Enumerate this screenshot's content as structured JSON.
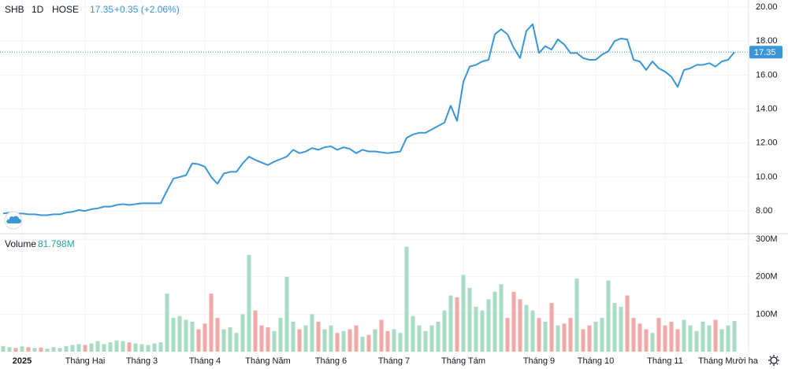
{
  "header": {
    "symbol": "SHB",
    "interval": "1D",
    "exchange": "HOSE",
    "last": "17.35",
    "change": "+0.35 (+2.06%)",
    "volume_value": "81.798M"
  },
  "chart_data": [
    {
      "type": "line",
      "categories": [
        null,
        null,
        null,
        "2025",
        null,
        null,
        null,
        null,
        null,
        null,
        null,
        null,
        null,
        "Tháng Hai",
        null,
        null,
        null,
        null,
        null,
        null,
        null,
        null,
        "Tháng 3",
        null,
        null,
        null,
        null,
        null,
        null,
        null,
        null,
        null,
        "Tháng 4",
        null,
        null,
        null,
        null,
        null,
        null,
        null,
        null,
        null,
        "Tháng Năm",
        null,
        null,
        null,
        null,
        null,
        null,
        null,
        null,
        null,
        "Tháng 6",
        null,
        null,
        null,
        null,
        null,
        null,
        null,
        null,
        null,
        "Tháng 7",
        null,
        null,
        null,
        null,
        null,
        null,
        null,
        null,
        null,
        null,
        "Tháng Tám",
        null,
        null,
        null,
        null,
        null,
        null,
        null,
        null,
        null,
        null,
        null,
        "Tháng 9",
        null,
        null,
        null,
        null,
        null,
        null,
        null,
        null,
        "Tháng 10",
        null,
        null,
        null,
        null,
        null,
        null,
        null,
        null,
        null,
        null,
        "Tháng 11",
        null,
        null,
        null,
        null,
        null,
        null,
        null,
        null,
        null,
        "Tháng Mười ha",
        null
      ],
      "series": [
        {
          "name": "SHB",
          "color": "#3a96d6",
          "values": [
            7.85,
            7.9,
            7.85,
            7.85,
            7.8,
            7.8,
            7.75,
            7.75,
            7.8,
            7.8,
            7.9,
            7.95,
            8.05,
            8.0,
            8.1,
            8.15,
            8.25,
            8.25,
            8.35,
            8.4,
            8.35,
            8.4,
            8.45,
            8.45,
            8.45,
            8.45,
            9.2,
            9.9,
            10.0,
            10.1,
            10.8,
            10.75,
            10.6,
            10.0,
            9.6,
            10.2,
            10.3,
            10.3,
            10.8,
            11.2,
            11.0,
            10.85,
            10.7,
            10.9,
            11.05,
            11.2,
            11.6,
            11.4,
            11.5,
            11.7,
            11.6,
            11.75,
            11.8,
            11.6,
            11.75,
            11.65,
            11.4,
            11.6,
            11.5,
            11.5,
            11.45,
            11.4,
            11.45,
            11.5,
            12.3,
            12.5,
            12.6,
            12.6,
            12.8,
            13.0,
            13.2,
            14.2,
            13.3,
            15.6,
            16.5,
            16.6,
            16.8,
            16.9,
            18.4,
            18.7,
            18.4,
            17.6,
            17.0,
            18.6,
            19.0,
            17.3,
            17.7,
            17.5,
            18.1,
            17.8,
            17.3,
            17.3,
            17.0,
            16.9,
            16.9,
            17.2,
            17.4,
            18.0,
            18.15,
            18.1,
            16.9,
            16.8,
            16.3,
            16.8,
            16.4,
            16.2,
            15.9,
            15.3,
            16.3,
            16.4,
            16.6,
            16.6,
            16.7,
            16.5,
            16.8,
            16.9,
            17.35
          ]
        }
      ],
      "ylim": [
        6.66,
        20.42
      ],
      "yticks": [
        {
          "value": 8,
          "label": "8.00"
        },
        {
          "value": 10,
          "label": "10.00"
        },
        {
          "value": 12,
          "label": "12.00"
        },
        {
          "value": 14,
          "label": "14.00"
        },
        {
          "value": 16,
          "label": "16.00"
        },
        {
          "value": 18,
          "label": "18.00"
        },
        {
          "value": 20,
          "label": "20.00"
        }
      ],
      "grid": true
    },
    {
      "type": "bar",
      "series": [
        {
          "name": "Volume",
          "up_color": "#a9dcc6",
          "down_color": "#f4a9a9",
          "values": [
            15,
            12,
            10,
            14,
            12,
            10,
            11,
            8,
            12,
            10,
            15,
            18,
            20,
            18,
            22,
            28,
            20,
            25,
            30,
            28,
            25,
            22,
            20,
            18,
            22,
            25,
            155,
            90,
            95,
            85,
            80,
            60,
            75,
            155,
            90,
            60,
            65,
            50,
            100,
            258,
            110,
            70,
            65,
            55,
            90,
            200,
            80,
            60,
            70,
            100,
            80,
            60,
            70,
            50,
            55,
            60,
            70,
            40,
            45,
            60,
            85,
            55,
            60,
            50,
            280,
            95,
            70,
            55,
            70,
            80,
            110,
            150,
            145,
            205,
            170,
            120,
            110,
            140,
            160,
            180,
            90,
            160,
            140,
            125,
            110,
            90,
            80,
            130,
            70,
            75,
            90,
            195,
            60,
            70,
            80,
            90,
            190,
            130,
            120,
            150,
            90,
            75,
            60,
            50,
            90,
            70,
            80,
            60,
            85,
            70,
            55,
            80,
            70,
            85,
            60,
            70,
            81.798
          ]
        }
      ],
      "ylim": [
        0,
        315
      ],
      "yticks": [
        {
          "value": 100,
          "label": "100M"
        },
        {
          "value": 200,
          "label": "200M"
        },
        {
          "value": 300,
          "label": "300M"
        }
      ],
      "grid": true
    }
  ]
}
